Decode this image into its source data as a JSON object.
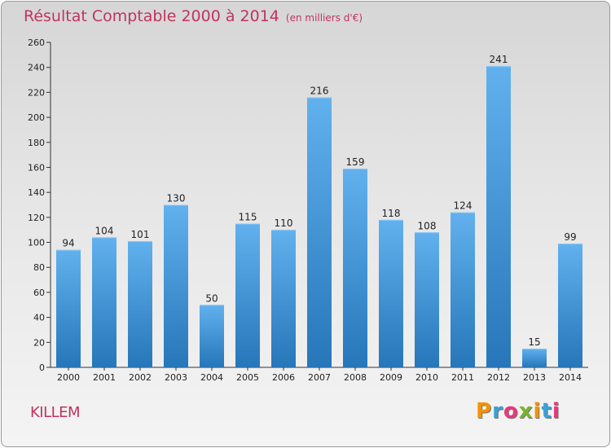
{
  "title": "Résultat Comptable 2000 à 2014",
  "subtitle": "(en milliers d'€)",
  "commune": "KILLEM",
  "logo": {
    "letters": [
      "P",
      "r",
      "o",
      "x",
      "i",
      "t",
      "i"
    ],
    "colors": [
      "#f29400",
      "#3aa0d8",
      "#e63a7a",
      "#7bb32e",
      "#f29400",
      "#3aa0d8",
      "#e63a7a"
    ]
  },
  "chart_data": {
    "type": "bar",
    "title": "Résultat Comptable 2000 à 2014",
    "ylabel": "en milliers d'€",
    "xlabel": "",
    "categories": [
      "2000",
      "2001",
      "2002",
      "2003",
      "2004",
      "2005",
      "2006",
      "2007",
      "2008",
      "2009",
      "2010",
      "2011",
      "2012",
      "2013",
      "2014"
    ],
    "values": [
      94,
      104,
      101,
      130,
      50,
      115,
      110,
      216,
      159,
      118,
      108,
      124,
      241,
      15,
      99
    ],
    "ylim": [
      0,
      260
    ],
    "yticks": [
      0,
      20,
      40,
      60,
      80,
      100,
      120,
      140,
      160,
      180,
      200,
      220,
      240,
      260
    ],
    "grid": false,
    "bar_color": "#3a8fd6"
  }
}
